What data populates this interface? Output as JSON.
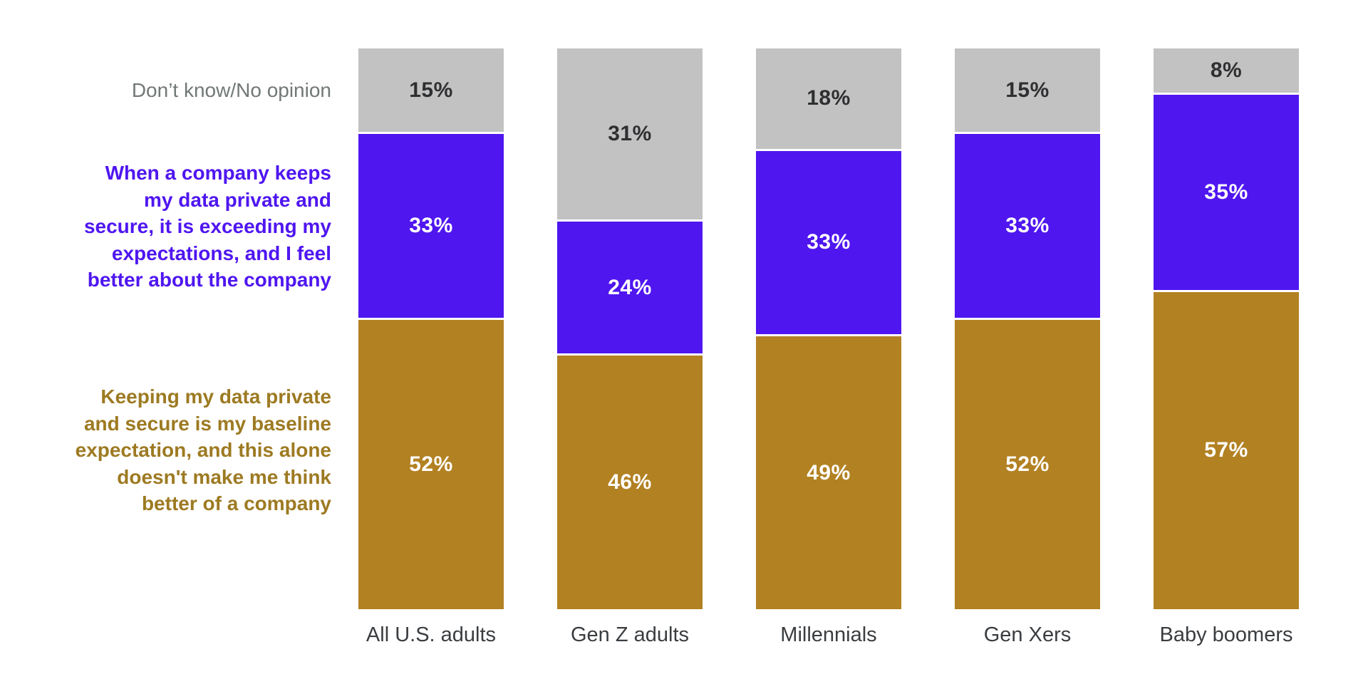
{
  "chart_data": {
    "type": "bar",
    "stacked": true,
    "orientation": "vertical",
    "title": "",
    "value_suffix": "%",
    "ylim": [
      0,
      100
    ],
    "grid": false,
    "legend_position": "left-row-labels",
    "categories": [
      "All U.S. adults",
      "Gen Z adults",
      "Millennials",
      "Gen Xers",
      "Baby boomers"
    ],
    "series": [
      {
        "name": "Don’t know/No opinion",
        "color": "#c3c2c2",
        "value_text_color": "#2e2f31",
        "label_color": "#717876",
        "values": [
          15,
          31,
          18,
          15,
          8
        ]
      },
      {
        "name": "When a company keeps my data private and secure, it is exceeding my expectations, and I feel better about the company",
        "color": "#4f16f0",
        "value_text_color": "#ffffff",
        "label_color": "#4f16f0",
        "values": [
          33,
          24,
          33,
          33,
          35
        ]
      },
      {
        "name": "Keeping my data private and secure is my baseline expectation, and this alone doesn't make me think better of a company",
        "color": "#b28122",
        "value_text_color": "#ffffff",
        "label_color": "#9d7a22",
        "values": [
          52,
          46,
          49,
          52,
          57
        ]
      }
    ]
  },
  "labels": {
    "dont_know": "Don’t know/No opinion",
    "exceeding": "When a company keeps\nmy data private and\nsecure, it is exceeding my\nexpectations, and I feel\nbetter about the company",
    "baseline": "Keeping my data private\nand secure is my baseline\nexpectation, and this alone\ndoesn't make me think\nbetter of a company"
  },
  "axis": {
    "category_label_color": "#3a3d40"
  }
}
